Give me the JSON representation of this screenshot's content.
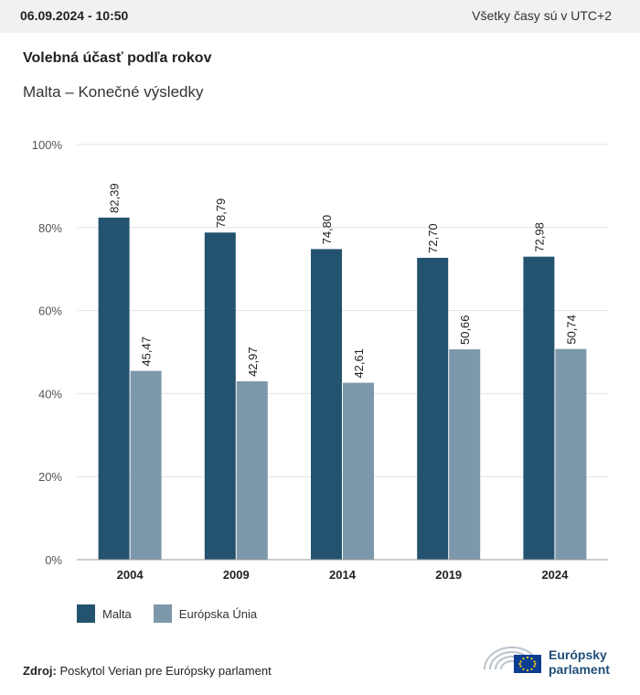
{
  "header": {
    "date": "06.09.2024 - 10:50",
    "timezone_note": "Všetky časy sú v UTC+2"
  },
  "title": "Volebná účasť podľa rokov",
  "subtitle": "Malta – Konečné výsledky",
  "colors": {
    "malta": "#24536f",
    "eu": "#7d98ab",
    "grid": "#e3e3e3",
    "axis": "#999999"
  },
  "chart_data": {
    "type": "bar",
    "categories": [
      "2004",
      "2009",
      "2014",
      "2019",
      "2024"
    ],
    "series": [
      {
        "name": "Malta",
        "values": [
          82.39,
          78.79,
          74.8,
          72.7,
          72.98
        ],
        "labels": [
          "82,39",
          "78,79",
          "74,80",
          "72,70",
          "72,98"
        ]
      },
      {
        "name": "Európska Únia",
        "values": [
          45.47,
          42.97,
          42.61,
          50.66,
          50.74
        ],
        "labels": [
          "45,47",
          "42,97",
          "42,61",
          "50,66",
          "50,74"
        ]
      }
    ],
    "ylim": [
      0,
      100
    ],
    "yticks": [
      0,
      20,
      40,
      60,
      80,
      100
    ],
    "ytick_labels": [
      "0%",
      "20%",
      "40%",
      "60%",
      "80%",
      "100%"
    ],
    "grid": true,
    "legend": "bottom-left"
  },
  "source": {
    "label": "Zdroj:",
    "text": "Poskytol Verian pre Európsky parlament"
  },
  "logo": {
    "line1": "Európsky",
    "line2": "parlament"
  }
}
